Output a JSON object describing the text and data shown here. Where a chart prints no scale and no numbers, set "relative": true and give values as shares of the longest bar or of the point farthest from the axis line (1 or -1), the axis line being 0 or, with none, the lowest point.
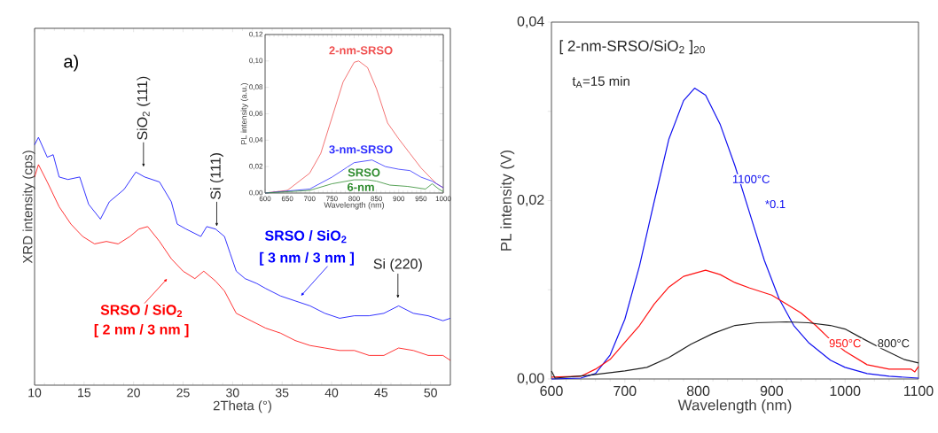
{
  "chart_data": [
    {
      "type": "line",
      "xlabel": "2Theta (°)",
      "ylabel": "XRD intensity (cps)",
      "relative": true,
      "xlim": [
        10,
        52
      ],
      "xticks": [
        10,
        15,
        20,
        25,
        30,
        35,
        40,
        45,
        50
      ],
      "x": [
        10,
        10.39,
        11.28,
        11.88,
        12.48,
        13.37,
        14.56,
        15.46,
        16.65,
        17.55,
        19.04,
        20.23,
        21.12,
        22.62,
        23.81,
        24.41,
        25.3,
        26.79,
        27.39,
        28.28,
        29.18,
        29.77,
        30.37,
        31.26,
        32.46,
        33.35,
        34.84,
        36.33,
        37.83,
        39.32,
        40.81,
        42.3,
        43.79,
        45.28,
        46.77,
        48.26,
        49.76,
        51.25,
        52
      ],
      "series": [
        {
          "name": "SRSO / SiO$_{2}$",
          "color": "#0000ff",
          "values": [
            0.97,
            1.0,
            0.92,
            0.93,
            0.84,
            0.83,
            0.84,
            0.73,
            0.67,
            0.74,
            0.79,
            0.86,
            0.84,
            0.82,
            0.74,
            0.65,
            0.63,
            0.6,
            0.64,
            0.63,
            0.6,
            0.53,
            0.46,
            0.43,
            0.41,
            0.39,
            0.36,
            0.34,
            0.32,
            0.29,
            0.27,
            0.28,
            0.28,
            0.29,
            0.32,
            0.29,
            0.28,
            0.26,
            0.27
          ]
        },
        {
          "name": "SRSO / SiO$_{2}$",
          "color": "#ff0000",
          "x": [
            10,
            10.39,
            11.28,
            12.48,
            13.67,
            14.86,
            16.06,
            17.25,
            18.44,
            19.63,
            20.53,
            21.42,
            22.62,
            23.81,
            25.0,
            26.19,
            27.09,
            28.28,
            29.18,
            30.37,
            31.86,
            33.35,
            34.84,
            36.33,
            37.83,
            39.32,
            40.81,
            42.3,
            43.79,
            45.28,
            46.77,
            48.26,
            49.76,
            51.25,
            52
          ],
          "values": [
            0.84,
            0.89,
            0.82,
            0.72,
            0.65,
            0.6,
            0.57,
            0.58,
            0.57,
            0.6,
            0.63,
            0.64,
            0.58,
            0.51,
            0.46,
            0.43,
            0.46,
            0.42,
            0.38,
            0.29,
            0.26,
            0.23,
            0.21,
            0.18,
            0.16,
            0.15,
            0.14,
            0.14,
            0.12,
            0.12,
            0.15,
            0.14,
            0.12,
            0.12,
            0.1
          ]
        }
      ],
      "annotations": [
        "a)",
        "SiO$_{2}$ (111)",
        "Si (111)",
        "Si (220)",
        "[ 3 nm / 3 nm ]",
        "[ 2 nm / 3 nm ]"
      ]
    },
    {
      "type": "line",
      "xlabel": "Wavelength (nm)",
      "ylabel": "PL intensity (a.u.)",
      "xlim": [
        600,
        1000
      ],
      "ylim": [
        0,
        0.12
      ],
      "xticks": [
        600,
        650,
        700,
        750,
        800,
        850,
        900,
        950,
        1000
      ],
      "yticks": [
        {
          "value": 0,
          "label": "0,00"
        },
        {
          "value": 0.02,
          "label": "0,02"
        },
        {
          "value": 0.04,
          "label": "0,04"
        },
        {
          "value": 0.06,
          "label": "0,06"
        },
        {
          "value": 0.08,
          "label": "0,08"
        },
        {
          "value": 0.1,
          "label": "0,10"
        },
        {
          "value": 0.12,
          "label": "0,12"
        }
      ],
      "series": [
        {
          "name": "2-nm-SRSO",
          "color": "#f05050",
          "x": [
            600,
            650,
            700,
            725,
            750,
            775,
            800,
            810,
            830,
            850,
            875,
            900,
            925,
            950,
            970,
            985,
            1000
          ],
          "values": [
            0,
            0.002,
            0.015,
            0.03,
            0.057,
            0.084,
            0.099,
            0.1,
            0.095,
            0.079,
            0.053,
            0.041,
            0.03,
            0.019,
            0.012,
            0.007,
            0.004
          ]
        },
        {
          "name": "3-nm-SRSO",
          "color": "#3030ff",
          "x": [
            600,
            700,
            750,
            800,
            840,
            870,
            900,
            925,
            950,
            975,
            1000
          ],
          "values": [
            0,
            0.003,
            0.012,
            0.023,
            0.025,
            0.02,
            0.018,
            0.017,
            0.012,
            0.009,
            0.004
          ]
        },
        {
          "name": "SRSO",
          "color": "#2e8b2e",
          "x": [
            600,
            700,
            750,
            800,
            830,
            850,
            880,
            920,
            960,
            975,
            990,
            1000
          ],
          "values": [
            0,
            0.002,
            0.007,
            0.01,
            0.01,
            0.009,
            0.006,
            0.005,
            0.003,
            0.007,
            0.003,
            0.001
          ]
        }
      ],
      "annotations": [
        "6-nm"
      ]
    },
    {
      "type": "line",
      "title": "[ 2-nm-SRSO/SiO$_{2}$ ]$_{20}$",
      "xlabel": "Wavelength (nm)",
      "ylabel": "PL intensity (V)",
      "xlim": [
        600,
        1100
      ],
      "ylim": [
        0,
        0.04
      ],
      "xticks": [
        600,
        700,
        800,
        900,
        1000,
        1100
      ],
      "yticks": [
        {
          "value": 0,
          "label": "0,00"
        },
        {
          "value": 0.01,
          "label": null
        },
        {
          "value": 0.02,
          "label": "0,02"
        },
        {
          "value": 0.03,
          "label": null
        },
        {
          "value": 0.04,
          "label": "0,04"
        }
      ],
      "series": [
        {
          "name": "1100°C",
          "color": "#1010f0",
          "x": [
            600,
            640,
            660,
            680,
            700,
            720,
            740,
            760,
            780,
            795,
            810,
            830,
            850,
            870,
            890,
            910,
            930,
            950,
            980,
            1000,
            1030,
            1060,
            1100
          ],
          "values": [
            0,
            0.0001,
            0.0006,
            0.0027,
            0.0067,
            0.0127,
            0.0199,
            0.0269,
            0.0312,
            0.0326,
            0.0318,
            0.0285,
            0.0239,
            0.0186,
            0.0133,
            0.009,
            0.006,
            0.0041,
            0.0021,
            0.0013,
            0.0006,
            0.0003,
            0.0001
          ]
        },
        {
          "name": "950°C",
          "color": "#ff1010",
          "x": [
            600,
            640,
            660,
            680,
            700,
            720,
            740,
            760,
            780,
            810,
            830,
            850,
            870,
            900,
            920,
            940,
            960,
            980,
            1000,
            1030,
            1060,
            1090,
            1095,
            1100
          ],
          "values": [
            0.0002,
            0.0003,
            0.0011,
            0.0022,
            0.0041,
            0.006,
            0.0084,
            0.0103,
            0.0115,
            0.0122,
            0.0117,
            0.0108,
            0.0102,
            0.0094,
            0.0084,
            0.0074,
            0.006,
            0.0044,
            0.0031,
            0.0016,
            0.0011,
            0.0011,
            0.0008,
            0.0014
          ]
        },
        {
          "name": "800°C",
          "color": "#202020",
          "x": [
            600,
            605,
            650,
            700,
            730,
            760,
            790,
            820,
            850,
            880,
            920,
            950,
            980,
            1000,
            1020,
            1050,
            1080,
            1100
          ],
          "values": [
            0.0009,
            0.0001,
            0.0004,
            0.0009,
            0.0013,
            0.0024,
            0.0039,
            0.0051,
            0.006,
            0.0063,
            0.0064,
            0.0063,
            0.006,
            0.0056,
            0.0047,
            0.0034,
            0.0022,
            0.0018
          ]
        }
      ],
      "annotations": [
        "t$_{A}$=15 min",
        "*0.1"
      ]
    }
  ]
}
